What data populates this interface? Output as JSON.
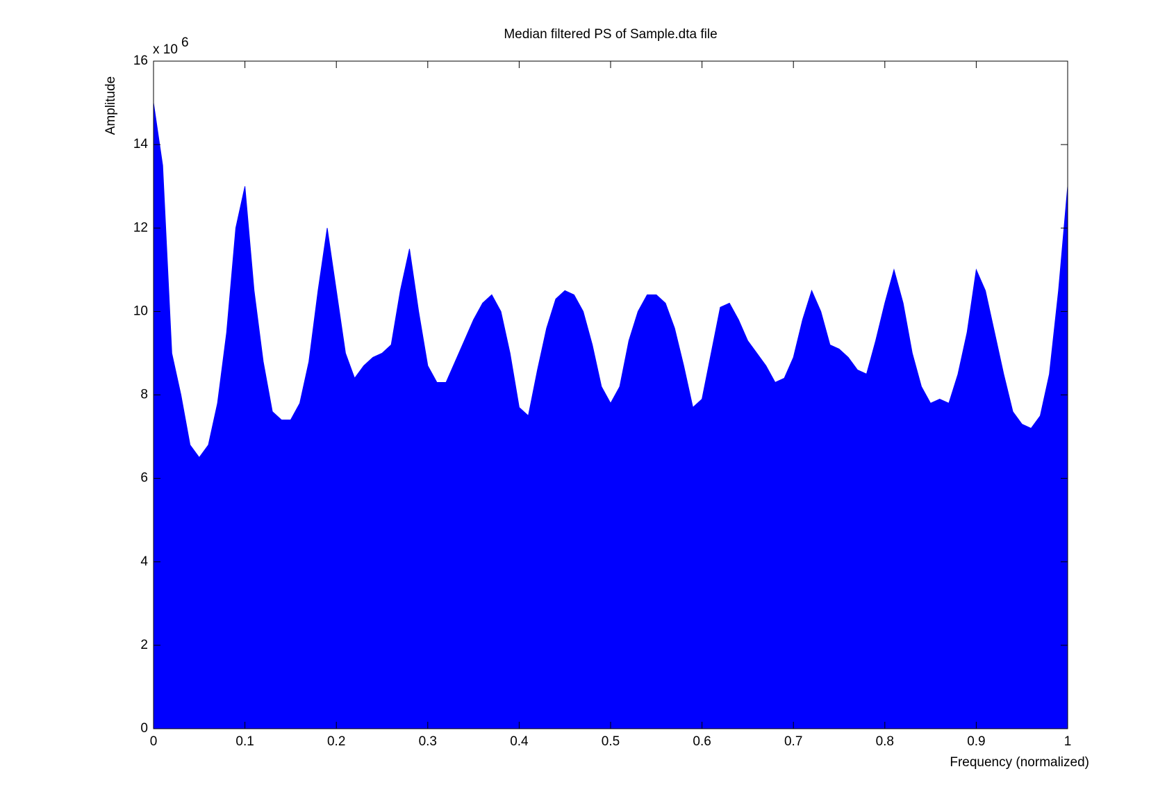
{
  "chart_data": {
    "type": "area",
    "title": "Median filtered PS of Sample.dta file",
    "xlabel": "Frequency (normalized)",
    "ylabel": "Amplitude",
    "y_multiplier": "x 10",
    "y_multiplier_exponent": "6",
    "color": "#0000ff",
    "xlim": [
      0,
      1
    ],
    "xticks": [
      0,
      0.1,
      0.2,
      0.3,
      0.4,
      0.5,
      0.6,
      0.7,
      0.8,
      0.9,
      1
    ],
    "ylim": [
      0,
      16
    ],
    "yticks": [
      0,
      2,
      4,
      6,
      8,
      10,
      12,
      14,
      16
    ],
    "x": [
      0,
      0.01,
      0.02,
      0.03,
      0.04,
      0.05,
      0.06,
      0.07,
      0.08,
      0.09,
      0.1,
      0.11,
      0.12,
      0.13,
      0.14,
      0.15,
      0.16,
      0.17,
      0.18,
      0.19,
      0.2,
      0.21,
      0.22,
      0.23,
      0.24,
      0.25,
      0.26,
      0.27,
      0.28,
      0.29,
      0.3,
      0.31,
      0.32,
      0.33,
      0.34,
      0.35,
      0.36,
      0.37,
      0.38,
      0.39,
      0.4,
      0.41,
      0.42,
      0.43,
      0.44,
      0.45,
      0.46,
      0.47,
      0.48,
      0.49,
      0.5,
      0.51,
      0.52,
      0.53,
      0.54,
      0.55,
      0.56,
      0.57,
      0.58,
      0.59,
      0.6,
      0.61,
      0.62,
      0.63,
      0.64,
      0.65,
      0.66,
      0.67,
      0.68,
      0.69,
      0.7,
      0.71,
      0.72,
      0.73,
      0.74,
      0.75,
      0.76,
      0.77,
      0.78,
      0.79,
      0.8,
      0.81,
      0.82,
      0.83,
      0.84,
      0.85,
      0.86,
      0.87,
      0.88,
      0.89,
      0.9,
      0.91,
      0.92,
      0.93,
      0.94,
      0.95,
      0.96,
      0.97,
      0.98,
      0.99,
      1
    ],
    "values": [
      15.0,
      13.5,
      9.0,
      8.0,
      6.8,
      6.5,
      6.8,
      7.8,
      9.5,
      12.0,
      13.0,
      10.5,
      8.8,
      7.6,
      7.4,
      7.4,
      7.8,
      8.8,
      10.5,
      12.0,
      10.5,
      9.0,
      8.4,
      8.7,
      8.9,
      9.0,
      9.2,
      10.5,
      11.5,
      10.0,
      8.7,
      8.3,
      8.3,
      8.8,
      9.3,
      9.8,
      10.2,
      10.4,
      10.0,
      9.0,
      7.7,
      7.5,
      8.6,
      9.6,
      10.3,
      10.5,
      10.4,
      10.0,
      9.2,
      8.2,
      7.8,
      8.2,
      9.3,
      10.0,
      10.4,
      10.4,
      10.2,
      9.6,
      8.7,
      7.7,
      7.9,
      9.0,
      10.1,
      10.2,
      9.8,
      9.3,
      9.0,
      8.7,
      8.3,
      8.4,
      8.9,
      9.8,
      10.5,
      10.0,
      9.2,
      9.1,
      8.9,
      8.6,
      8.5,
      9.3,
      10.2,
      11.0,
      10.2,
      9.0,
      8.2,
      7.8,
      7.9,
      7.8,
      8.5,
      9.5,
      11.0,
      10.5,
      9.5,
      8.5,
      7.6,
      7.3,
      7.2,
      7.5,
      8.5,
      10.5,
      13.0
    ]
  }
}
